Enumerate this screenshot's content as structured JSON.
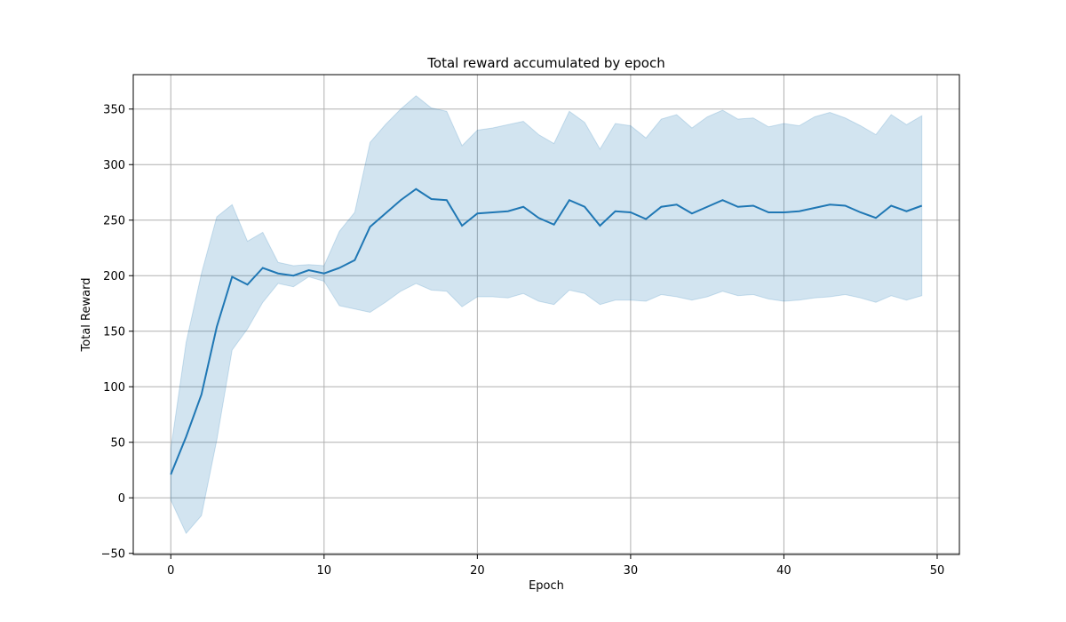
{
  "chart_data": {
    "type": "line",
    "title": "Total reward accumulated by epoch",
    "xlabel": "Epoch",
    "ylabel": "Total Reward",
    "xlim": [
      -2.45,
      51.45
    ],
    "ylim": [
      -51,
      381
    ],
    "xticks": [
      0,
      10,
      20,
      30,
      40,
      50
    ],
    "yticks": [
      -50,
      0,
      50,
      100,
      150,
      200,
      250,
      300,
      350
    ],
    "grid": true,
    "legend": "none",
    "colors": {
      "line": "#1f77b4",
      "band": "#1f77b4",
      "band_opacity": 0.2,
      "grid": "#b0b0b0"
    },
    "series": [
      {
        "x": [
          0,
          1,
          2,
          3,
          4,
          5,
          6,
          7,
          8,
          9,
          10,
          11,
          12,
          13,
          14,
          15,
          16,
          17,
          18,
          19,
          20,
          21,
          22,
          23,
          24,
          25,
          26,
          27,
          28,
          29,
          30,
          31,
          32,
          33,
          34,
          35,
          36,
          37,
          38,
          39,
          40,
          41,
          42,
          43,
          44,
          45,
          46,
          47,
          48,
          49
        ],
        "mean": [
          21,
          55,
          93,
          154,
          199,
          192,
          207,
          202,
          200,
          205,
          202,
          207,
          214,
          244,
          256,
          268,
          278,
          269,
          268,
          245,
          256,
          257,
          258,
          262,
          252,
          246,
          268,
          262,
          245,
          258,
          257,
          251,
          262,
          264,
          256,
          262,
          268,
          262,
          263,
          257,
          257,
          258,
          261,
          264,
          263,
          257,
          252,
          263,
          258,
          263
        ],
        "upper": [
          44,
          140,
          202,
          253,
          264,
          231,
          239,
          212,
          209,
          210,
          209,
          240,
          257,
          320,
          336,
          350,
          362,
          351,
          348,
          317,
          331,
          333,
          336,
          339,
          327,
          319,
          348,
          338,
          314,
          337,
          335,
          324,
          341,
          345,
          333,
          343,
          349,
          341,
          342,
          334,
          337,
          335,
          343,
          347,
          342,
          335,
          327,
          345,
          336,
          344
        ],
        "lower": [
          -2,
          -32,
          -16,
          52,
          133,
          152,
          176,
          193,
          190,
          199,
          195,
          173,
          170,
          167,
          176,
          186,
          193,
          187,
          186,
          172,
          181,
          181,
          180,
          184,
          177,
          174,
          187,
          184,
          174,
          178,
          178,
          177,
          183,
          181,
          178,
          181,
          186,
          182,
          183,
          179,
          177,
          178,
          180,
          181,
          183,
          180,
          176,
          182,
          178,
          182
        ]
      }
    ]
  }
}
